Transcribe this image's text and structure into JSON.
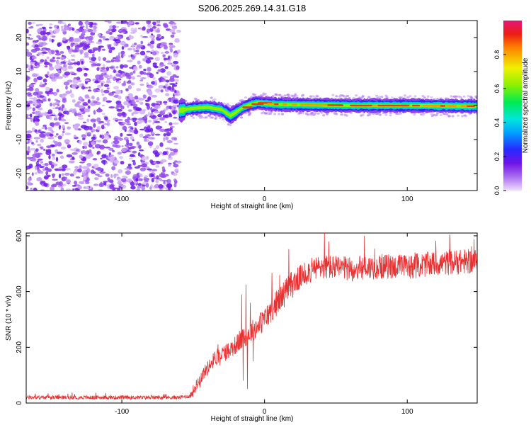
{
  "title": "S206.2025.269.14.31.G18",
  "chart_data": [
    {
      "type": "heatmap",
      "xlabel": "Height of straight line (km)",
      "ylabel": "Frequency (Hz)",
      "xlim": [
        -167,
        149
      ],
      "ylim": [
        -25,
        25
      ],
      "xticks": [
        -100,
        0,
        100
      ],
      "yticks": [
        -20,
        -10,
        0,
        10,
        20
      ],
      "colorbar": {
        "label": "Normalized spectral amplitude",
        "range": [
          0,
          1
        ],
        "ticks": [
          0.0,
          0.2,
          0.4,
          0.6,
          0.8
        ]
      },
      "features": {
        "noise_region_x": [
          -167,
          -60
        ],
        "signal_center_track": [
          [
            -60,
            -1.5
          ],
          [
            -50,
            -0.8
          ],
          [
            -40,
            -0.5
          ],
          [
            -30,
            -1.2
          ],
          [
            -24,
            -3.0
          ],
          [
            -20,
            -2.0
          ],
          [
            -15,
            -0.5
          ],
          [
            -10,
            0.3
          ],
          [
            -5,
            0.8
          ],
          [
            0,
            0.6
          ],
          [
            10,
            0.3
          ],
          [
            30,
            0.2
          ],
          [
            60,
            0.0
          ],
          [
            100,
            0.0
          ],
          [
            149,
            -0.2
          ]
        ]
      }
    },
    {
      "type": "line",
      "xlabel": "Height of straight line (km)",
      "ylabel": "SNR (10 * v/v)",
      "xlim": [
        -167,
        149
      ],
      "ylim": [
        0,
        610
      ],
      "xticks": [
        -100,
        0,
        100
      ],
      "yticks": [
        0,
        200,
        400,
        600
      ],
      "color": "#e83232",
      "envelope": [
        [
          -167,
          20
        ],
        [
          -60,
          20
        ],
        [
          -52,
          25
        ],
        [
          -45,
          90
        ],
        [
          -35,
          160
        ],
        [
          -25,
          190
        ],
        [
          -15,
          230
        ],
        [
          0,
          300
        ],
        [
          10,
          370
        ],
        [
          20,
          430
        ],
        [
          30,
          470
        ],
        [
          40,
          490
        ],
        [
          60,
          480
        ],
        [
          80,
          490
        ],
        [
          100,
          490
        ],
        [
          120,
          500
        ],
        [
          149,
          510
        ]
      ],
      "spikes": [
        [
          -13,
          425
        ],
        [
          -15,
          80
        ],
        [
          -12,
          50
        ],
        [
          -16,
          390
        ],
        [
          -10,
          360
        ],
        [
          -8,
          150
        ],
        [
          42,
          608
        ],
        [
          45,
          580
        ],
        [
          70,
          600
        ],
        [
          130,
          590
        ]
      ]
    }
  ]
}
